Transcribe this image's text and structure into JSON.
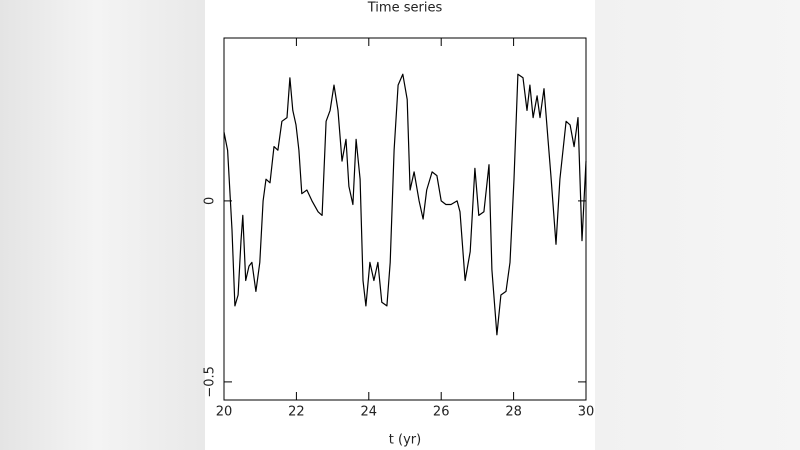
{
  "chart_data": {
    "type": "line",
    "title": "Time series",
    "xlabel": "t (yr)",
    "color": "#000000",
    "x": [
      20.0,
      20.1,
      20.22,
      20.3,
      20.39,
      20.47,
      20.52,
      20.6,
      20.69,
      20.77,
      20.88,
      20.99,
      21.08,
      21.16,
      21.27,
      21.38,
      21.49,
      21.6,
      21.74,
      21.82,
      21.9,
      21.99,
      22.07,
      22.15,
      22.29,
      22.43,
      22.6,
      22.71,
      22.82,
      22.93,
      23.04,
      23.15,
      23.26,
      23.37,
      23.45,
      23.56,
      23.65,
      23.76,
      23.84,
      23.92,
      24.03,
      24.14,
      24.25,
      24.36,
      24.5,
      24.59,
      24.7,
      24.81,
      24.94,
      25.06,
      25.14,
      25.25,
      25.39,
      25.5,
      25.6,
      25.75,
      25.88,
      26.0,
      26.13,
      26.27,
      26.44,
      26.52,
      26.66,
      26.8,
      26.93,
      27.04,
      27.18,
      27.32,
      27.4,
      27.54,
      27.65,
      27.79,
      27.9,
      28.01,
      28.12,
      28.26,
      28.37,
      28.45,
      28.54,
      28.65,
      28.73,
      28.84,
      28.95,
      29.03,
      29.17,
      29.28,
      29.45,
      29.56,
      29.67,
      29.78,
      29.89,
      30.0
    ],
    "values": [
      0.19,
      0.14,
      -0.08,
      -0.29,
      -0.26,
      -0.11,
      -0.04,
      -0.22,
      -0.18,
      -0.17,
      -0.25,
      -0.17,
      0,
      0.06,
      0.05,
      0.15,
      0.14,
      0.22,
      0.23,
      0.34,
      0.25,
      0.21,
      0.14,
      0.02,
      0.03,
      0,
      -0.03,
      -0.04,
      0.22,
      0.25,
      0.32,
      0.25,
      0.11,
      0.17,
      0.04,
      -0.01,
      0.17,
      0.06,
      -0.22,
      -0.29,
      -0.17,
      -0.22,
      -0.17,
      -0.28,
      -0.29,
      -0.17,
      0.14,
      0.32,
      0.35,
      0.28,
      0.03,
      0.08,
      0,
      -0.05,
      0.03,
      0.08,
      0.07,
      0,
      -0.01,
      -0.01,
      0,
      -0.03,
      -0.22,
      -0.14,
      0.09,
      -0.04,
      -0.03,
      0.1,
      -0.19,
      -0.37,
      -0.26,
      -0.25,
      -0.17,
      0.06,
      0.35,
      0.34,
      0.25,
      0.32,
      0.23,
      0.29,
      0.23,
      0.31,
      0.17,
      0.07,
      -0.12,
      0.06,
      0.22,
      0.21,
      0.15,
      0.23,
      -0.11,
      0.11
    ],
    "xlim": [
      20,
      30
    ],
    "xticks": [
      20,
      22,
      24,
      26,
      28,
      30
    ],
    "ylim": [
      -0.55,
      0.45
    ],
    "yticks": [
      {
        "value": -0.5,
        "label": "−0.5"
      },
      0
    ]
  }
}
